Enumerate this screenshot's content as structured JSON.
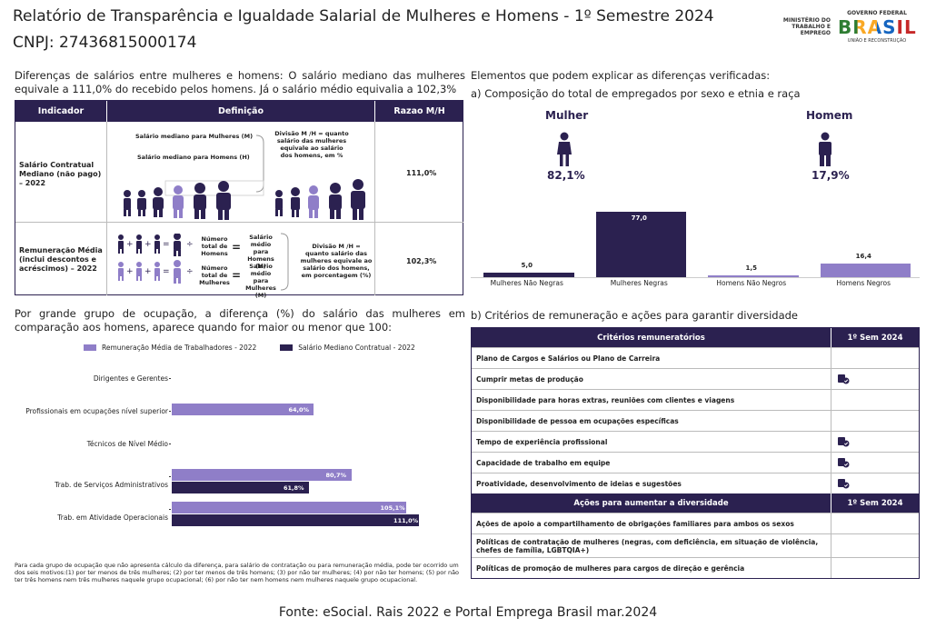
{
  "header": {
    "title": "Relatório de Transparência e Igualdade Salarial de Mulheres e Homens - 1º Semestre 2024",
    "cnpj": "CNPJ: 27436815000174",
    "ministry_logo": "MINISTÉRIO DO TRABALHO E EMPREGO",
    "gov_logo_top": "GOVERNO FEDERAL",
    "gov_logo_main": "BRASIL",
    "gov_logo_bottom": "UNIÃO E RECONSTRUÇÃO"
  },
  "intro": "Diferenças de salários entre mulheres e homens: O salário mediano das mulheres equivale a 111,0% do recebido pelos homens. Já o salário médio equivalia a 102,3%",
  "indicator_table": {
    "headers": [
      "Indicador",
      "Definição",
      "Razao M/H"
    ],
    "row1": {
      "label": "Salário Contratual Mediano (não pago) – 2022",
      "def_women": "Salário mediano para Mulheres (M)",
      "def_men": "Salário mediano para Homens (H)",
      "def_note": "Divisão M /H = quanto salário das mulheres equivale ao salário dos homens, em %",
      "ratio": "111,0%"
    },
    "row2": {
      "label": "Remuneração Média (inclui descontos e acréscimos) – 2022",
      "total_men": "Número total de Homens",
      "avg_men": "Salário médio para Homens (H)",
      "total_women": "Número total de Mulheres",
      "avg_women": "Salário médio para Mulheres (M)",
      "def_note": "Divisão M /H = quanto salário das mulheres equivale ao salário dos homens, em porcentagem (%)",
      "ratio": "102,3%"
    }
  },
  "section2": {
    "text": "Por grande grupo de ocupação, a diferença (%) do salário das mulheres em comparação aos homens, aparece quando for maior ou menor que 100:",
    "legend": [
      "Remuneração Média de Trabalhadores - 2022",
      "Salário Mediano Contratual - 2022"
    ]
  },
  "chart_data": [
    {
      "type": "bar",
      "orientation": "horizontal",
      "categories": [
        "Dirigentes e Gerentes",
        "Profissionais em ocupações nível superior",
        "Técnicos de Nível Médio",
        "Trab. de Serviços Administrativos",
        "Trab. em Atividade Operacionais"
      ],
      "series": [
        {
          "name": "Remuneração Média de Trabalhadores - 2022",
          "values": [
            null,
            64.0,
            null,
            80.7,
            105.1
          ],
          "labels": [
            "",
            "64,0%",
            "",
            "80,7%",
            "105,1%"
          ]
        },
        {
          "name": "Salário Mediano Contratual - 2022",
          "values": [
            null,
            null,
            null,
            61.8,
            111.0
          ],
          "labels": [
            "",
            "",
            "",
            "61,8%",
            "111,0%"
          ]
        }
      ],
      "xlim": [
        0,
        120
      ]
    },
    {
      "type": "bar",
      "title": "a) Composição do total de empregados por sexo e etnia e raça",
      "categories": [
        "Mulheres Não Negras",
        "Mulheres Negras",
        "Homens Não Negros",
        "Homens Negros"
      ],
      "values": [
        5.0,
        77.0,
        1.5,
        16.4
      ],
      "labels": [
        "5,0",
        "77,0",
        "1,5",
        "16,4"
      ],
      "ylim": [
        0,
        80
      ]
    }
  ],
  "footnote": "Para cada grupo de ocupação que não apresenta cálculo da diferença, para salário de contratação ou para remuneração média, pode ter ocorrido um dos seis motivos:(1) por ter menos de três mulheres; (2) por ter menos de três homens; (3) por não ter mulheres; (4) por não ter homens; (5) por não ter três homens nem três mulheres naquele grupo ocupacional; (6) por não ter nem homens nem mulheres naquele grupo ocupacional.",
  "right": {
    "elements_title": "Elementos que podem explicar as diferenças verificadas:",
    "composition_title": "a) Composição do total de empregados por sexo e etnia e raça",
    "woman_label": "Mulher",
    "woman_pct": "82,1%",
    "man_label": "Homem",
    "man_pct": "17,9%",
    "colors": {
      "dark": "#2b2150",
      "light": "#8f7ec8"
    }
  },
  "criteria": {
    "title": "b) Critérios de remuneração e ações para garantir diversidade",
    "head1": "Critérios remuneratórios",
    "head_sem": "1º Sem 2024",
    "rows": [
      {
        "label": "Plano de Cargos e Salários ou Plano de Carreira",
        "icon": false
      },
      {
        "label": "Cumprir metas de produção",
        "icon": true
      },
      {
        "label": "Disponibilidade para horas extras, reuniões com clientes e viagens",
        "icon": false
      },
      {
        "label": "Disponibilidade de pessoa em ocupações específicas",
        "icon": false
      },
      {
        "label": "Tempo de experiência profissional",
        "icon": true
      },
      {
        "label": "Capacidade de trabalho em equipe",
        "icon": true
      },
      {
        "label": "Proatividade, desenvolvimento de ideias e sugestões",
        "icon": true
      }
    ],
    "head2": "Ações para aumentar a diversidade",
    "head_sem2": "1º Sem 2024",
    "actions": [
      {
        "label": "Ações de apoio a compartilhamento de obrigações familiares para ambos os sexos"
      },
      {
        "label": "Políticas de contratação de mulheres (negras, com deficiência, em situação de violência, chefes de família, LGBTQIA+)"
      },
      {
        "label": "Políticas de promoção de mulheres para cargos de direção e gerência"
      }
    ]
  },
  "source": "Fonte: eSocial. Rais 2022 e Portal Emprega Brasil mar.2024"
}
